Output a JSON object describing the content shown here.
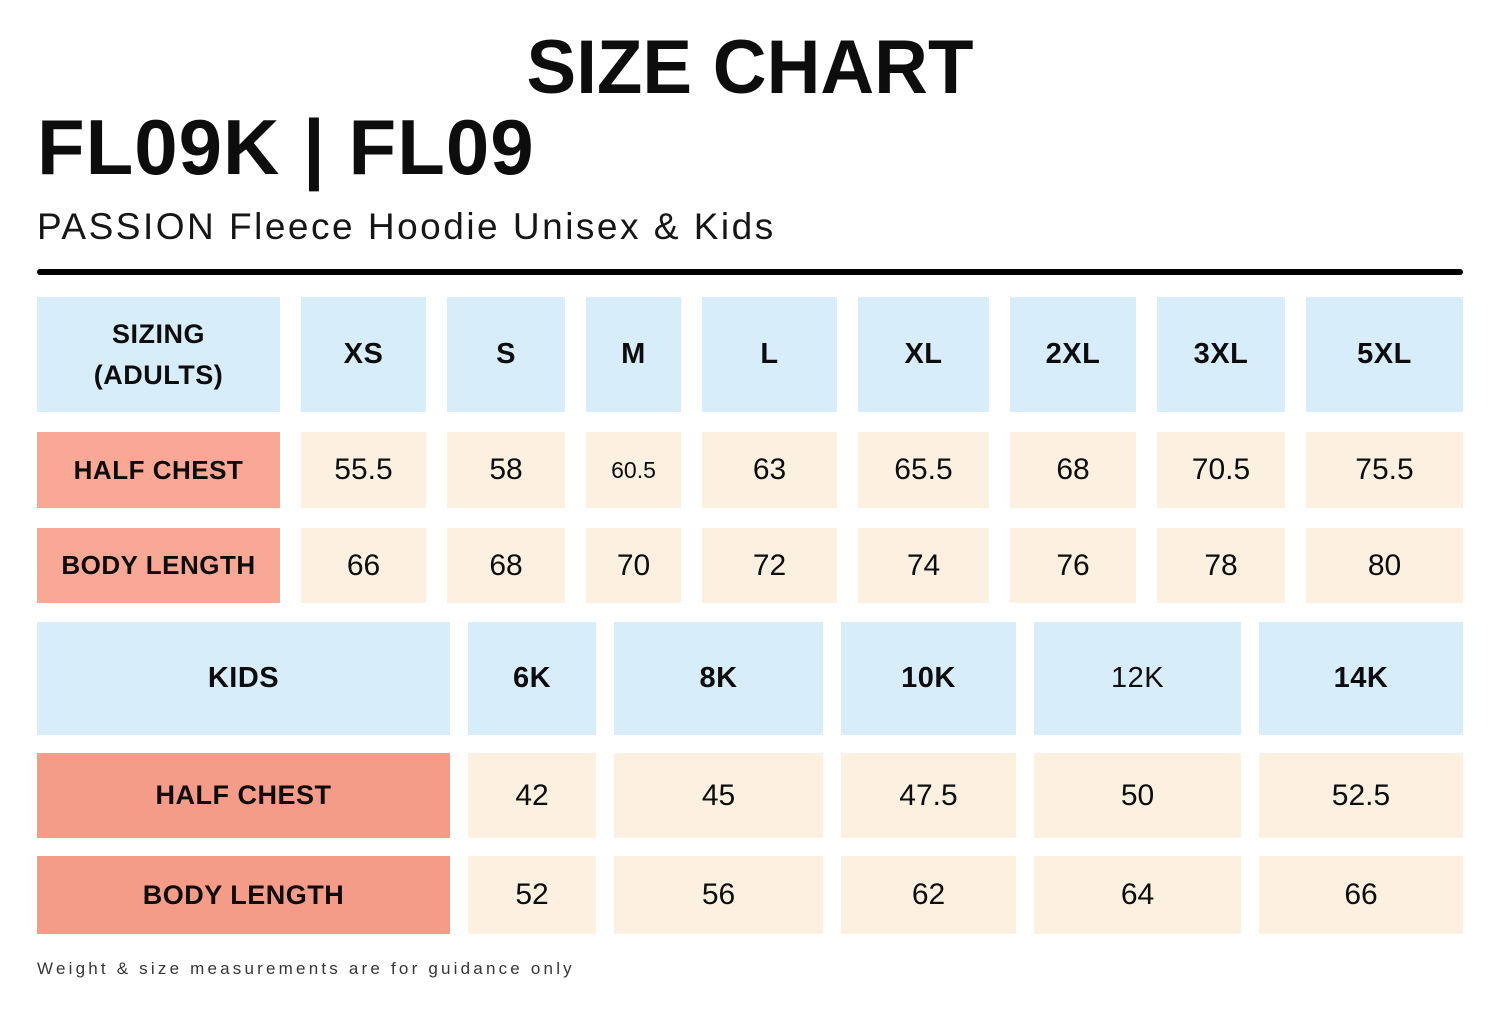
{
  "page": {
    "title": "SIZE CHART",
    "product_code": "FL09K | FL09",
    "product_name": "PASSION Fleece Hoodie Unisex & Kids",
    "footnote": "Weight & size measurements are for guidance only"
  },
  "colors": {
    "header_cell_blue": "#d7edfa",
    "adult_label_salmon": "#f8a894",
    "kids_label_salmon": "#f49c88",
    "value_cell_cream": "#fcf1e1",
    "divider_black": "#000000",
    "text_black": "#0d0d0d"
  },
  "adults_table": {
    "header": [
      "SIZING (ADULTS)",
      "XS",
      "S",
      "M",
      "L",
      "XL",
      "2XL",
      "3XL",
      "5XL"
    ],
    "rows": [
      {
        "label": "HALF CHEST",
        "values": [
          "55.5",
          "58",
          "60.5",
          "63",
          "65.5",
          "68",
          "70.5",
          "75.5"
        ]
      },
      {
        "label": "BODY LENGTH",
        "values": [
          "66",
          "68",
          "70",
          "72",
          "74",
          "76",
          "78",
          "80"
        ]
      }
    ]
  },
  "kids_table": {
    "header": [
      "KIDS",
      "6K",
      "8K",
      "10K",
      "12K",
      "14K"
    ],
    "rows": [
      {
        "label": "HALF CHEST",
        "values": [
          "42",
          "45",
          "47.5",
          "50",
          "52.5"
        ]
      },
      {
        "label": "BODY LENGTH",
        "values": [
          "52",
          "56",
          "62",
          "64",
          "66"
        ]
      }
    ]
  }
}
